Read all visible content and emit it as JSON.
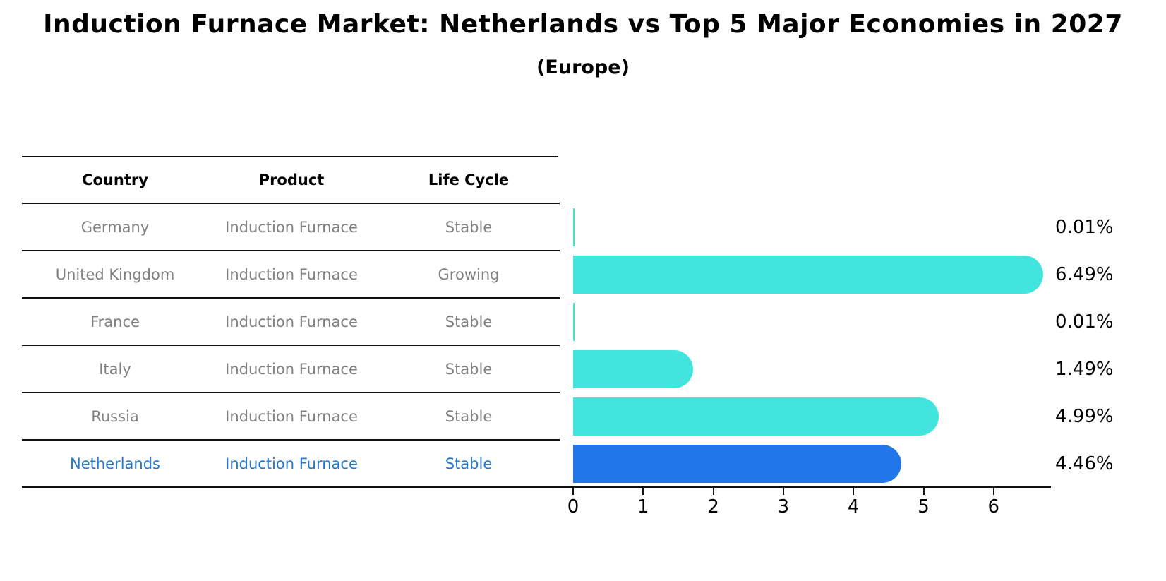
{
  "header": {
    "title": "Induction Furnace Market: Netherlands vs Top 5 Major Economies in 2027",
    "subtitle": "(Europe)"
  },
  "table": {
    "headers": [
      "Country",
      "Product",
      "Life Cycle"
    ],
    "rows": [
      {
        "country": "Germany",
        "product": "Induction Furnace",
        "life_cycle": "Stable"
      },
      {
        "country": "United Kingdom",
        "product": "Induction Furnace",
        "life_cycle": "Growing"
      },
      {
        "country": "France",
        "product": "Induction Furnace",
        "life_cycle": "Stable"
      },
      {
        "country": "Italy",
        "product": "Induction Furnace",
        "life_cycle": "Stable"
      },
      {
        "country": "Russia",
        "product": "Induction Furnace",
        "life_cycle": "Stable"
      },
      {
        "country": "Netherlands",
        "product": "Induction Furnace",
        "life_cycle": "Stable"
      }
    ],
    "text_color": "#808080",
    "highlight_text_color": "#2478cf",
    "highlight_index": 5
  },
  "chart_data": {
    "type": "bar",
    "orientation": "horizontal",
    "title": "Induction Furnace Market: Netherlands vs Top 5 Major Economies in 2027",
    "subtitle": "(Europe)",
    "categories": [
      "Germany",
      "United Kingdom",
      "France",
      "Italy",
      "Russia",
      "Netherlands"
    ],
    "values": [
      0.01,
      6.49,
      0.01,
      1.49,
      4.99,
      4.46
    ],
    "value_labels": [
      "0.01%",
      "6.49%",
      "0.01%",
      "1.49%",
      "4.99%",
      "4.46%"
    ],
    "xlabel": "",
    "ylabel": "",
    "xticks": [
      "0",
      "1",
      "2",
      "3",
      "4",
      "5",
      "6"
    ],
    "xlim": [
      -0.2,
      6.85
    ],
    "grid": false,
    "legend": "none",
    "bar_color": "#42e5de",
    "highlight_bar_color": "#2177e8",
    "highlight_index": 5,
    "axis_color": "#111111"
  }
}
